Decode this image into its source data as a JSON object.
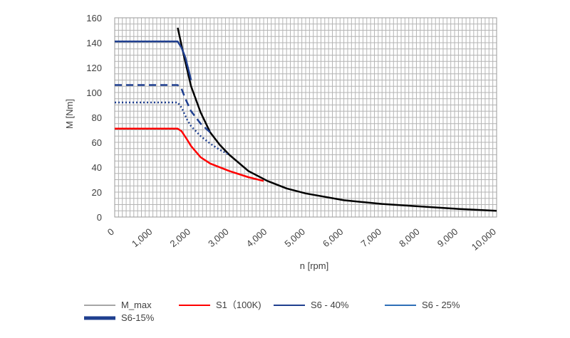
{
  "chart_data": {
    "type": "line",
    "title": "",
    "xlabel": "n [rpm]",
    "ylabel": "M [Nm]",
    "xlim": [
      0,
      10000
    ],
    "ylim": [
      0,
      160
    ],
    "x_ticks": [
      0,
      1000,
      2000,
      3000,
      4000,
      5000,
      6000,
      7000,
      8000,
      9000,
      10000
    ],
    "x_tick_labels": [
      "0",
      "1,000",
      "2,000",
      "3,000",
      "4,000",
      "5,000",
      "6,000",
      "7,000",
      "8,000",
      "9,000",
      "10,000"
    ],
    "y_ticks": [
      0,
      20,
      40,
      60,
      80,
      100,
      120,
      140,
      160
    ],
    "y_tick_labels": [
      "0",
      "20",
      "40",
      "60",
      "80",
      "100",
      "120",
      "140",
      "160"
    ],
    "grid": true,
    "legend_position": "bottom",
    "series": [
      {
        "name": "M_max",
        "color": "#000000",
        "dash": "solid",
        "legend_color": "#a6a6a6",
        "legend_width": 2,
        "x": [
          1650,
          1800,
          2000,
          2250,
          2500,
          2750,
          3000,
          3500,
          4000,
          4500,
          5000,
          6000,
          7000,
          8000,
          9000,
          10000
        ],
        "y": [
          152,
          131,
          105,
          84,
          68,
          58,
          50,
          37,
          29,
          23,
          19,
          13.5,
          10.5,
          8.5,
          6.5,
          5
        ]
      },
      {
        "name": "S1（100K)",
        "color": "#ff0000",
        "dash": "solid",
        "legend_color": "#ff0000",
        "legend_width": 2,
        "x": [
          0,
          1650,
          1750,
          1900,
          2000,
          2250,
          2500,
          3000,
          3500,
          3900
        ],
        "y": [
          71,
          71,
          69,
          62,
          57,
          48,
          43,
          37,
          32,
          29
        ]
      },
      {
        "name": "S6 - 40%",
        "color": "#1f3f8f",
        "dash": "dash",
        "legend_color": "#1f3f8f",
        "legend_width": 2,
        "x": [
          0,
          1650,
          1750,
          1850,
          2000,
          2250,
          2500
        ],
        "y": [
          106,
          106,
          103,
          95,
          85,
          75,
          68
        ]
      },
      {
        "name": "S6 - 25%",
        "color": "#1f3f8f",
        "dash": "dot",
        "legend_color": "#2e6fb7",
        "legend_width": 2,
        "x": [
          0,
          1650,
          1750,
          1900,
          2000,
          2250,
          2500,
          2750,
          3000
        ],
        "y": [
          92,
          92,
          88,
          78,
          73,
          65,
          59,
          54,
          50
        ]
      },
      {
        "name": "S6-15%",
        "color": "#1f3f8f",
        "dash": "solid",
        "legend_color": "#1f3f8f",
        "legend_width": 5,
        "x": [
          0,
          1650,
          1750,
          1850,
          2000
        ],
        "y": [
          141,
          141,
          136,
          128,
          110
        ]
      }
    ]
  }
}
